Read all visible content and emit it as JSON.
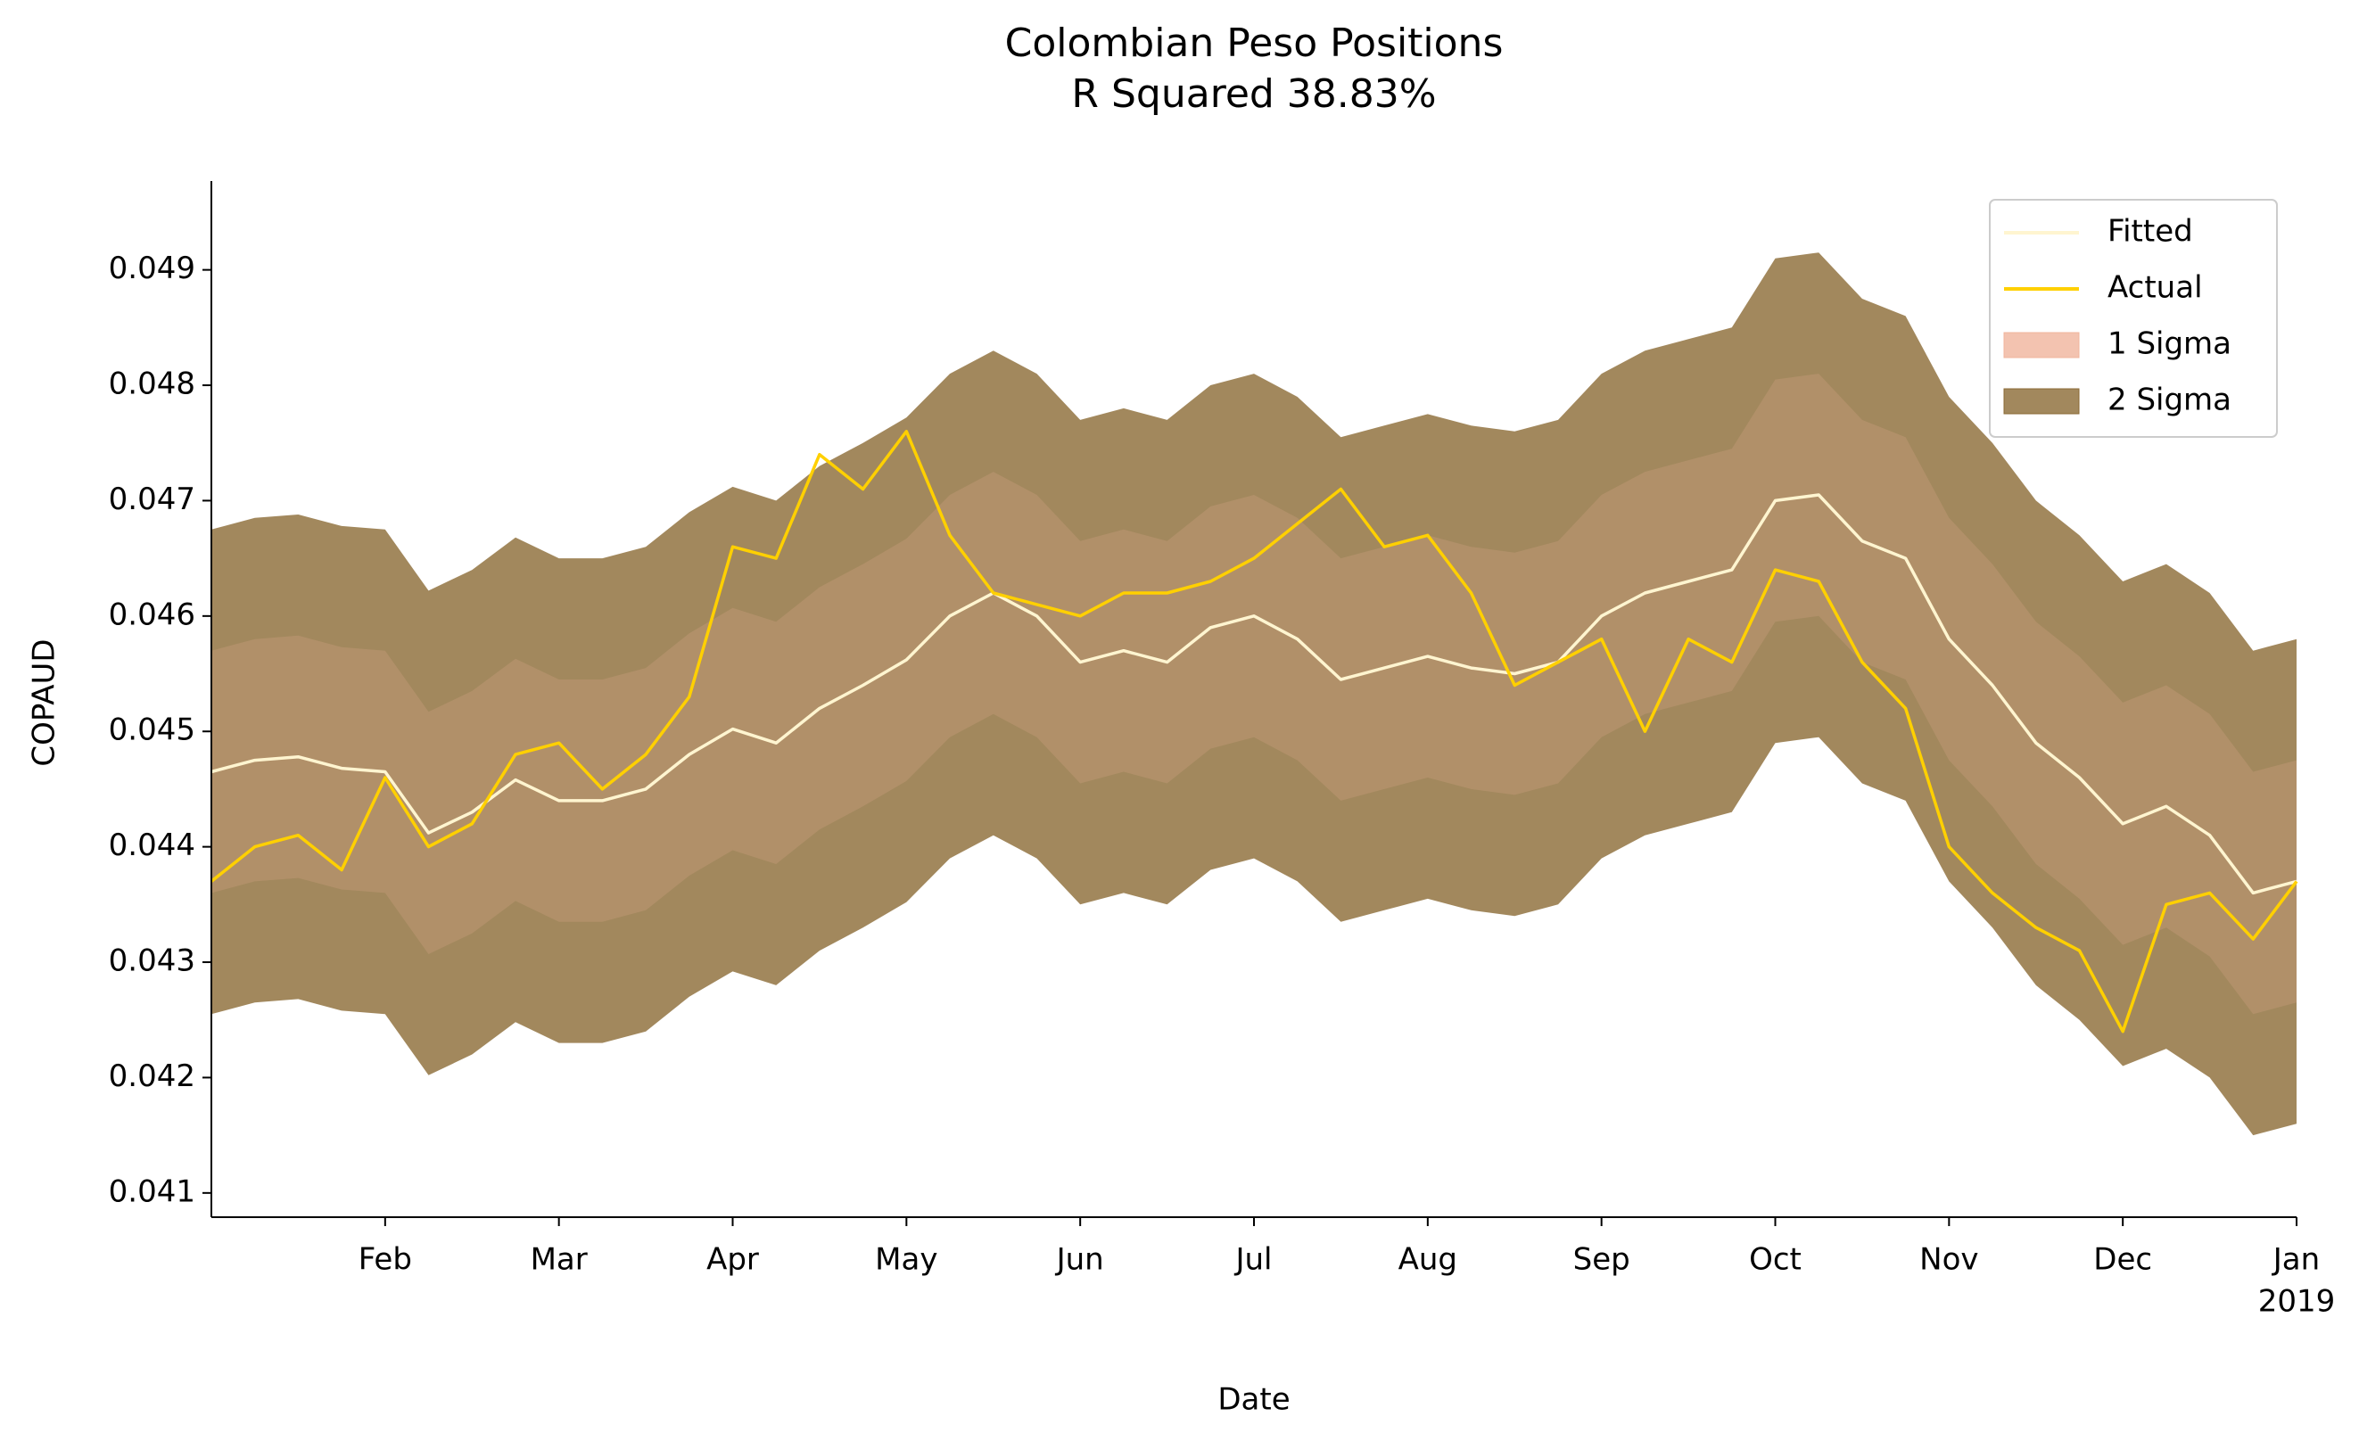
{
  "chart_data": {
    "type": "band-line",
    "title": "Colombian Peso Positions",
    "subtitle": "R Squared 38.83%",
    "xlabel": "Date",
    "ylabel": "COPAUD",
    "xlim": [
      1,
      13
    ],
    "ylim": [
      0.04079,
      0.04977
    ],
    "xticks": [
      {
        "value": 2,
        "label": "Feb"
      },
      {
        "value": 3,
        "label": "Mar"
      },
      {
        "value": 4,
        "label": "Apr"
      },
      {
        "value": 5,
        "label": "May"
      },
      {
        "value": 6,
        "label": "Jun"
      },
      {
        "value": 7,
        "label": "Jul"
      },
      {
        "value": 8,
        "label": "Aug"
      },
      {
        "value": 9,
        "label": "Sep"
      },
      {
        "value": 10,
        "label": "Oct"
      },
      {
        "value": 11,
        "label": "Nov"
      },
      {
        "value": 12,
        "label": "Dec"
      },
      {
        "value": 13,
        "label": "Jan"
      }
    ],
    "xtick_sublabel": "2019",
    "yticks": [
      0.041,
      0.042,
      0.043,
      0.044,
      0.045,
      0.046,
      0.047,
      0.048,
      0.049
    ],
    "legend": "upper right",
    "x": [
      1,
      1.25,
      1.5,
      1.75,
      2,
      2.25,
      2.5,
      2.75,
      3,
      3.25,
      3.5,
      3.75,
      4,
      4.25,
      4.5,
      4.75,
      5,
      5.25,
      5.5,
      5.75,
      6,
      6.25,
      6.5,
      6.75,
      7,
      7.25,
      7.5,
      7.75,
      8,
      8.25,
      8.5,
      8.75,
      9,
      9.25,
      9.5,
      9.75,
      10,
      10.25,
      10.5,
      10.75,
      11,
      11.25,
      11.5,
      11.75,
      12,
      12.25,
      12.5,
      12.75,
      13
    ],
    "series": [
      {
        "name": "Fitted",
        "color": "#fff5d0",
        "values": [
          0.04465,
          0.04475,
          0.04478,
          0.04468,
          0.04465,
          0.04412,
          0.0443,
          0.04458,
          0.0444,
          0.0444,
          0.0445,
          0.0448,
          0.04502,
          0.0449,
          0.0452,
          0.0454,
          0.04562,
          0.046,
          0.0462,
          0.046,
          0.0456,
          0.0457,
          0.0456,
          0.0459,
          0.046,
          0.0458,
          0.04545,
          0.04555,
          0.04565,
          0.04555,
          0.0455,
          0.0456,
          0.046,
          0.0462,
          0.0463,
          0.0464,
          0.047,
          0.04705,
          0.04665,
          0.0465,
          0.0458,
          0.0454,
          0.0449,
          0.0446,
          0.0442,
          0.04435,
          0.0441,
          0.0436,
          0.0437
        ]
      },
      {
        "name": "Actual",
        "color": "#ffd000",
        "values": [
          0.0437,
          0.044,
          0.0441,
          0.0438,
          0.0446,
          0.044,
          0.0442,
          0.0448,
          0.0449,
          0.0445,
          0.0448,
          0.0453,
          0.0466,
          0.0465,
          0.0474,
          0.0471,
          0.0476,
          0.0467,
          0.0462,
          0.0461,
          0.046,
          0.0462,
          0.0462,
          0.0463,
          0.0465,
          0.0468,
          0.0471,
          0.0466,
          0.0467,
          0.0462,
          0.0454,
          0.0456,
          0.0458,
          0.045,
          0.0458,
          0.0456,
          0.0464,
          0.0463,
          0.0456,
          0.0452,
          0.044,
          0.0436,
          0.0433,
          0.0431,
          0.0424,
          0.0435,
          0.0436,
          0.0432,
          0.0437
        ]
      }
    ],
    "bands": [
      {
        "name": "1 Sigma",
        "color": "#f0b49c",
        "upper": [
          0.0457,
          0.0458,
          0.04583,
          0.04573,
          0.0457,
          0.04517,
          0.04535,
          0.04563,
          0.04545,
          0.04545,
          0.04555,
          0.04585,
          0.04607,
          0.04595,
          0.04625,
          0.04645,
          0.04667,
          0.04705,
          0.04725,
          0.04705,
          0.04665,
          0.04675,
          0.04665,
          0.04695,
          0.04705,
          0.04685,
          0.0465,
          0.0466,
          0.0467,
          0.0466,
          0.04655,
          0.04665,
          0.04705,
          0.04725,
          0.04735,
          0.04745,
          0.04805,
          0.0481,
          0.0477,
          0.04755,
          0.04685,
          0.04645,
          0.04595,
          0.04565,
          0.04525,
          0.0454,
          0.04515,
          0.04465,
          0.04475
        ],
        "lower": [
          0.0436,
          0.0437,
          0.04373,
          0.04363,
          0.0436,
          0.04307,
          0.04325,
          0.04353,
          0.04335,
          0.04335,
          0.04345,
          0.04375,
          0.04397,
          0.04385,
          0.04415,
          0.04435,
          0.04457,
          0.04495,
          0.04515,
          0.04495,
          0.04455,
          0.04465,
          0.04455,
          0.04485,
          0.04495,
          0.04475,
          0.0444,
          0.0445,
          0.0446,
          0.0445,
          0.04445,
          0.04455,
          0.04495,
          0.04515,
          0.04525,
          0.04535,
          0.04595,
          0.046,
          0.0456,
          0.04545,
          0.04475,
          0.04435,
          0.04385,
          0.04355,
          0.04315,
          0.0433,
          0.04305,
          0.04255,
          0.04265
        ]
      },
      {
        "name": "2 Sigma",
        "color": "#8b6a35",
        "upper": [
          0.04675,
          0.04685,
          0.04688,
          0.04678,
          0.04675,
          0.04622,
          0.0464,
          0.04668,
          0.0465,
          0.0465,
          0.0466,
          0.0469,
          0.04712,
          0.047,
          0.0473,
          0.0475,
          0.04772,
          0.0481,
          0.0483,
          0.0481,
          0.0477,
          0.0478,
          0.0477,
          0.048,
          0.0481,
          0.0479,
          0.04755,
          0.04765,
          0.04775,
          0.04765,
          0.0476,
          0.0477,
          0.0481,
          0.0483,
          0.0484,
          0.0485,
          0.0491,
          0.04915,
          0.04875,
          0.0486,
          0.0479,
          0.0475,
          0.047,
          0.0467,
          0.0463,
          0.04645,
          0.0462,
          0.0457,
          0.0458
        ],
        "lower": [
          0.04255,
          0.04265,
          0.04268,
          0.04258,
          0.04255,
          0.04202,
          0.0422,
          0.04248,
          0.0423,
          0.0423,
          0.0424,
          0.0427,
          0.04292,
          0.0428,
          0.0431,
          0.0433,
          0.04352,
          0.0439,
          0.0441,
          0.0439,
          0.0435,
          0.0436,
          0.0435,
          0.0438,
          0.0439,
          0.0437,
          0.04335,
          0.04345,
          0.04355,
          0.04345,
          0.0434,
          0.0435,
          0.0439,
          0.0441,
          0.0442,
          0.0443,
          0.0449,
          0.04495,
          0.04455,
          0.0444,
          0.0437,
          0.0433,
          0.0428,
          0.0425,
          0.0421,
          0.04225,
          0.042,
          0.0415,
          0.0416
        ]
      }
    ]
  }
}
